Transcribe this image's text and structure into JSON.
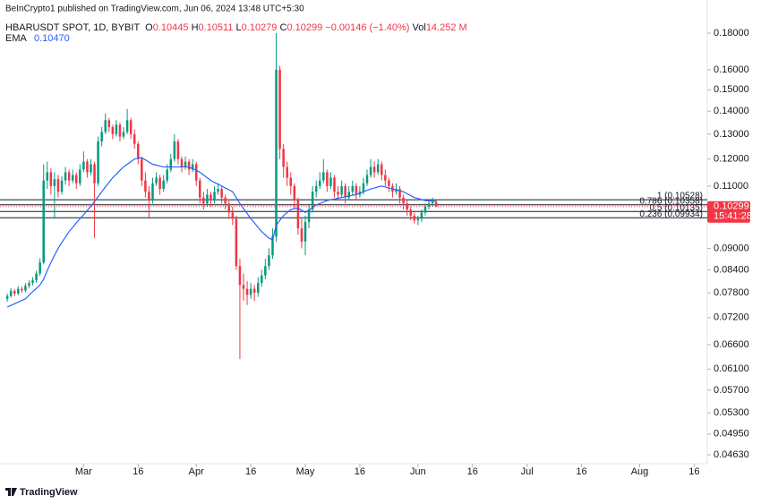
{
  "chart_data": {
    "type": "candlestick",
    "attribution": "BeInCrypto1 published on TradingView.com, Jun 06, 2024 13:48 UTC+5:30",
    "symbol": "HBARUSDT SPOT, 1D, BYBIT",
    "legend": [
      {
        "key": "O",
        "value": "0.10445"
      },
      {
        "key": "H",
        "value": "0.10511"
      },
      {
        "key": "L",
        "value": "0.10279"
      },
      {
        "key": "C",
        "value": "0.10299"
      },
      {
        "key": "",
        "value": "−0.00146 (−1.40%)"
      },
      {
        "key": "Vol",
        "value": "14.252 M"
      }
    ],
    "logo": "TradingView",
    "log": true,
    "grid": false,
    "up_color": "#089981",
    "down_color": "#f23645",
    "ylim": [
      0.04498,
      0.2003
    ],
    "yticks": [
      {
        "value": 0.18,
        "label": "0.18000"
      },
      {
        "value": 0.16,
        "label": "0.16000"
      },
      {
        "value": 0.15,
        "label": "0.15000"
      },
      {
        "value": 0.14,
        "label": "0.14000"
      },
      {
        "value": 0.13,
        "label": "0.13000"
      },
      {
        "value": 0.12,
        "label": "0.12000"
      },
      {
        "value": 0.11,
        "label": "0.11000"
      },
      {
        "value": 0.09,
        "label": "0.09000"
      },
      {
        "value": 0.084,
        "label": "0.08400"
      },
      {
        "value": 0.078,
        "label": "0.07800"
      },
      {
        "value": 0.072,
        "label": "0.07200"
      },
      {
        "value": 0.066,
        "label": "0.06600"
      },
      {
        "value": 0.061,
        "label": "0.06100"
      },
      {
        "value": 0.057,
        "label": "0.05700"
      },
      {
        "value": 0.053,
        "label": "0.05300"
      },
      {
        "value": 0.0495,
        "label": "0.04950"
      },
      {
        "value": 0.0463,
        "label": "0.04630"
      }
    ],
    "xlim": [
      -2,
      192.6
    ],
    "xticks": [
      {
        "value": 21,
        "label": "Mar"
      },
      {
        "value": 36,
        "label": "16"
      },
      {
        "value": 52,
        "label": "Apr"
      },
      {
        "value": 67,
        "label": "16"
      },
      {
        "value": 82,
        "label": "May"
      },
      {
        "value": 97,
        "label": "16"
      },
      {
        "value": 113,
        "label": "Jun"
      },
      {
        "value": 128,
        "label": "16"
      },
      {
        "value": 143,
        "label": "Jul"
      },
      {
        "value": 158,
        "label": "16"
      },
      {
        "value": 174,
        "label": "Aug"
      },
      {
        "value": 189,
        "label": "16"
      }
    ],
    "candles": [
      [
        0.0765,
        0.0778,
        0.0758,
        0.0772
      ],
      [
        0.0772,
        0.0792,
        0.0768,
        0.0785
      ],
      [
        0.0785,
        0.079,
        0.0771,
        0.0778
      ],
      [
        0.0778,
        0.0797,
        0.0774,
        0.079
      ],
      [
        0.079,
        0.0796,
        0.078,
        0.0786
      ],
      [
        0.0786,
        0.0805,
        0.0781,
        0.0798
      ],
      [
        0.0798,
        0.0812,
        0.0792,
        0.0805
      ],
      [
        0.0805,
        0.082,
        0.0799,
        0.0812
      ],
      [
        0.0812,
        0.0838,
        0.0806,
        0.083
      ],
      [
        0.083,
        0.0872,
        0.0824,
        0.086
      ],
      [
        0.086,
        0.118,
        0.0855,
        0.112
      ],
      [
        0.112,
        0.119,
        0.109,
        0.115
      ],
      [
        0.115,
        0.1165,
        0.107,
        0.11
      ],
      [
        0.11,
        0.115,
        0.099,
        0.1125
      ],
      [
        0.1125,
        0.114,
        0.106,
        0.108
      ],
      [
        0.108,
        0.1135,
        0.107,
        0.112
      ],
      [
        0.112,
        0.117,
        0.1105,
        0.115
      ],
      [
        0.115,
        0.116,
        0.11,
        0.112
      ],
      [
        0.112,
        0.116,
        0.111,
        0.114
      ],
      [
        0.114,
        0.115,
        0.109,
        0.111
      ],
      [
        0.111,
        0.118,
        0.11,
        0.116
      ],
      [
        0.116,
        0.123,
        0.115,
        0.119
      ],
      [
        0.119,
        0.12,
        0.113,
        0.115
      ],
      [
        0.115,
        0.12,
        0.114,
        0.118
      ],
      [
        0.118,
        0.119,
        0.093,
        0.111
      ],
      [
        0.111,
        0.129,
        0.11,
        0.127
      ],
      [
        0.127,
        0.133,
        0.125,
        0.131
      ],
      [
        0.131,
        0.139,
        0.13,
        0.136
      ],
      [
        0.136,
        0.137,
        0.131,
        0.133
      ],
      [
        0.133,
        0.134,
        0.128,
        0.13
      ],
      [
        0.13,
        0.136,
        0.129,
        0.134
      ],
      [
        0.134,
        0.135,
        0.127,
        0.129
      ],
      [
        0.129,
        0.133,
        0.128,
        0.131
      ],
      [
        0.131,
        0.141,
        0.13,
        0.136
      ],
      [
        0.136,
        0.137,
        0.128,
        0.13
      ],
      [
        0.13,
        0.132,
        0.124,
        0.126
      ],
      [
        0.126,
        0.127,
        0.118,
        0.12
      ],
      [
        0.12,
        0.121,
        0.11,
        0.112
      ],
      [
        0.112,
        0.115,
        0.106,
        0.108
      ],
      [
        0.108,
        0.11,
        0.099,
        0.105
      ],
      [
        0.105,
        0.113,
        0.104,
        0.111
      ],
      [
        0.111,
        0.115,
        0.11,
        0.113
      ],
      [
        0.113,
        0.114,
        0.107,
        0.109
      ],
      [
        0.109,
        0.114,
        0.108,
        0.112
      ],
      [
        0.112,
        0.118,
        0.111,
        0.116
      ],
      [
        0.116,
        0.122,
        0.115,
        0.12
      ],
      [
        0.12,
        0.13,
        0.119,
        0.127
      ],
      [
        0.127,
        0.128,
        0.118,
        0.12
      ],
      [
        0.12,
        0.121,
        0.115,
        0.117
      ],
      [
        0.117,
        0.121,
        0.116,
        0.119
      ],
      [
        0.119,
        0.12,
        0.114,
        0.116
      ],
      [
        0.116,
        0.12,
        0.115,
        0.118
      ],
      [
        0.118,
        0.119,
        0.11,
        0.112
      ],
      [
        0.112,
        0.113,
        0.104,
        0.106
      ],
      [
        0.106,
        0.108,
        0.102,
        0.104
      ],
      [
        0.104,
        0.109,
        0.103,
        0.107
      ],
      [
        0.107,
        0.108,
        0.103,
        0.105
      ],
      [
        0.105,
        0.11,
        0.104,
        0.108
      ],
      [
        0.108,
        0.111,
        0.107,
        0.109
      ],
      [
        0.109,
        0.11,
        0.104,
        0.106
      ],
      [
        0.106,
        0.107,
        0.102,
        0.104
      ],
      [
        0.104,
        0.105,
        0.099,
        0.101
      ],
      [
        0.101,
        0.103,
        0.097,
        0.099
      ],
      [
        0.099,
        0.1,
        0.084,
        0.085
      ],
      [
        0.085,
        0.087,
        0.063,
        0.08
      ],
      [
        0.08,
        0.083,
        0.076,
        0.079
      ],
      [
        0.079,
        0.081,
        0.075,
        0.0775
      ],
      [
        0.0775,
        0.0805,
        0.0765,
        0.079
      ],
      [
        0.079,
        0.08,
        0.076,
        0.078
      ],
      [
        0.078,
        0.082,
        0.077,
        0.0805
      ],
      [
        0.0805,
        0.084,
        0.0795,
        0.0825
      ],
      [
        0.0825,
        0.087,
        0.0815,
        0.085
      ],
      [
        0.085,
        0.09,
        0.084,
        0.088
      ],
      [
        0.088,
        0.096,
        0.087,
        0.0935
      ],
      [
        0.0935,
        0.18,
        0.092,
        0.16
      ],
      [
        0.16,
        0.162,
        0.12,
        0.124
      ],
      [
        0.124,
        0.126,
        0.113,
        0.117
      ],
      [
        0.117,
        0.119,
        0.11,
        0.113
      ],
      [
        0.113,
        0.115,
        0.107,
        0.11
      ],
      [
        0.11,
        0.111,
        0.102,
        0.105
      ],
      [
        0.105,
        0.106,
        0.094,
        0.096
      ],
      [
        0.096,
        0.099,
        0.09,
        0.092
      ],
      [
        0.092,
        0.1,
        0.088,
        0.098
      ],
      [
        0.098,
        0.104,
        0.096,
        0.102
      ],
      [
        0.102,
        0.11,
        0.101,
        0.108
      ],
      [
        0.108,
        0.112,
        0.106,
        0.11
      ],
      [
        0.11,
        0.115,
        0.109,
        0.112
      ],
      [
        0.112,
        0.12,
        0.111,
        0.115
      ],
      [
        0.115,
        0.116,
        0.108,
        0.11
      ],
      [
        0.11,
        0.115,
        0.109,
        0.113
      ],
      [
        0.113,
        0.114,
        0.106,
        0.108
      ],
      [
        0.108,
        0.11,
        0.105,
        0.107
      ],
      [
        0.107,
        0.112,
        0.106,
        0.11
      ],
      [
        0.11,
        0.111,
        0.104,
        0.106
      ],
      [
        0.106,
        0.11,
        0.105,
        0.108
      ],
      [
        0.108,
        0.112,
        0.107,
        0.11
      ],
      [
        0.11,
        0.111,
        0.105,
        0.107
      ],
      [
        0.107,
        0.11,
        0.106,
        0.108
      ],
      [
        0.108,
        0.113,
        0.107,
        0.111
      ],
      [
        0.111,
        0.116,
        0.11,
        0.114
      ],
      [
        0.114,
        0.12,
        0.113,
        0.117
      ],
      [
        0.117,
        0.119,
        0.113,
        0.115
      ],
      [
        0.115,
        0.12,
        0.114,
        0.118
      ],
      [
        0.118,
        0.119,
        0.112,
        0.114
      ],
      [
        0.114,
        0.116,
        0.11,
        0.112
      ],
      [
        0.112,
        0.113,
        0.108,
        0.11
      ],
      [
        0.11,
        0.111,
        0.106,
        0.108
      ],
      [
        0.108,
        0.111,
        0.107,
        0.109
      ],
      [
        0.109,
        0.11,
        0.104,
        0.106
      ],
      [
        0.106,
        0.107,
        0.102,
        0.104
      ],
      [
        0.104,
        0.105,
        0.1,
        0.102
      ],
      [
        0.102,
        0.103,
        0.0985,
        0.1
      ],
      [
        0.1,
        0.101,
        0.0975,
        0.0985
      ],
      [
        0.0985,
        0.1,
        0.097,
        0.099
      ],
      [
        0.099,
        0.102,
        0.098,
        0.101
      ],
      [
        0.101,
        0.104,
        0.1,
        0.103
      ],
      [
        0.103,
        0.105,
        0.102,
        0.104
      ],
      [
        0.104,
        0.106,
        0.103,
        0.10445
      ],
      [
        0.10445,
        0.10511,
        0.10279,
        0.10299
      ]
    ],
    "ema": {
      "name": "EMA",
      "color": "#2962ff",
      "value_label": "0.10470",
      "values": [
        0.0745,
        0.0749,
        0.0753,
        0.0757,
        0.0761,
        0.0765,
        0.0774,
        0.0783,
        0.0791,
        0.08,
        0.0815,
        0.0838,
        0.086,
        0.088,
        0.09,
        0.0917,
        0.0933,
        0.095,
        0.0963,
        0.0977,
        0.099,
        0.1003,
        0.1017,
        0.103,
        0.1047,
        0.1063,
        0.108,
        0.1097,
        0.1113,
        0.113,
        0.1143,
        0.1157,
        0.117,
        0.118,
        0.119,
        0.12,
        0.1203,
        0.1205,
        0.1197,
        0.1188,
        0.118,
        0.1177,
        0.1173,
        0.117,
        0.117,
        0.117,
        0.117,
        0.117,
        0.117,
        0.117,
        0.117,
        0.1163,
        0.1157,
        0.115,
        0.114,
        0.113,
        0.112,
        0.1113,
        0.1107,
        0.11,
        0.1093,
        0.1087,
        0.108,
        0.106,
        0.104,
        0.1023,
        0.1007,
        0.099,
        0.0977,
        0.0963,
        0.095,
        0.094,
        0.093,
        0.0925,
        0.097,
        0.0985,
        0.1,
        0.101,
        0.102,
        0.1023,
        0.1025,
        0.1018,
        0.101,
        0.1018,
        0.1027,
        0.1035,
        0.104,
        0.1045,
        0.105,
        0.1053,
        0.1055,
        0.1058,
        0.106,
        0.1063,
        0.1065,
        0.1068,
        0.107,
        0.1075,
        0.108,
        0.1085,
        0.109,
        0.1093,
        0.1097,
        0.11,
        0.1097,
        0.1093,
        0.109,
        0.1087,
        0.1083,
        0.108,
        0.1073,
        0.1067,
        0.106,
        0.1057,
        0.1053,
        0.105,
        0.1049,
        0.1048,
        0.1047
      ]
    },
    "fib_levels": [
      {
        "value": 0.10528,
        "label": "1 (0.10528)"
      },
      {
        "value": 0.10358,
        "label": "0.786 (0.10358)"
      },
      {
        "value": 0.10135,
        "label": "0.5 (0.10135)"
      },
      {
        "value": 0.09934,
        "label": "0.236 (0.09934)"
      }
    ],
    "last_price": {
      "value": 0.10299,
      "label": "0.10299",
      "countdown": "15:41:28"
    }
  }
}
